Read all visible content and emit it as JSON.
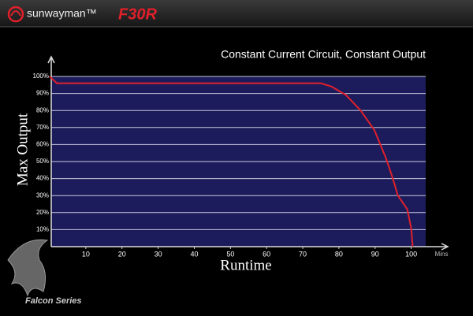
{
  "brand": "sunwayman™",
  "model": "F30R",
  "series_name": "Falcon Series",
  "chart_data": {
    "type": "line",
    "title": "Constant Current Circuit, Constant Output",
    "y_label": "Max Output",
    "x_label": "Runtime",
    "x_unit": "Mins",
    "x": [
      0,
      2,
      10,
      20,
      30,
      40,
      50,
      60,
      70,
      75,
      78,
      82,
      86,
      89.8,
      93,
      94.8,
      96.3,
      98.9,
      100,
      100.4
    ],
    "values": [
      100,
      96,
      96,
      96,
      96,
      96,
      96,
      96,
      96,
      96,
      94,
      89,
      80,
      68.5,
      52,
      40.7,
      30,
      22,
      10.6,
      0
    ],
    "color": "#e0202a",
    "xlim": [
      0,
      104
    ],
    "ylim": [
      0,
      100
    ],
    "xticks": [
      10,
      20,
      30,
      40,
      50,
      60,
      70,
      80,
      90,
      100
    ],
    "yticks": [
      {
        "value": 10,
        "label": "10%"
      },
      {
        "value": 20,
        "label": "20%"
      },
      {
        "value": 30,
        "label": "30%"
      },
      {
        "value": 40,
        "label": "40%"
      },
      {
        "value": 50,
        "label": "50%"
      },
      {
        "value": 60,
        "label": "60%"
      },
      {
        "value": 70,
        "label": "70%"
      },
      {
        "value": 80,
        "label": "80%"
      },
      {
        "value": 90,
        "label": "90%"
      },
      {
        "value": 100,
        "label": "100%"
      }
    ],
    "grid": true
  }
}
